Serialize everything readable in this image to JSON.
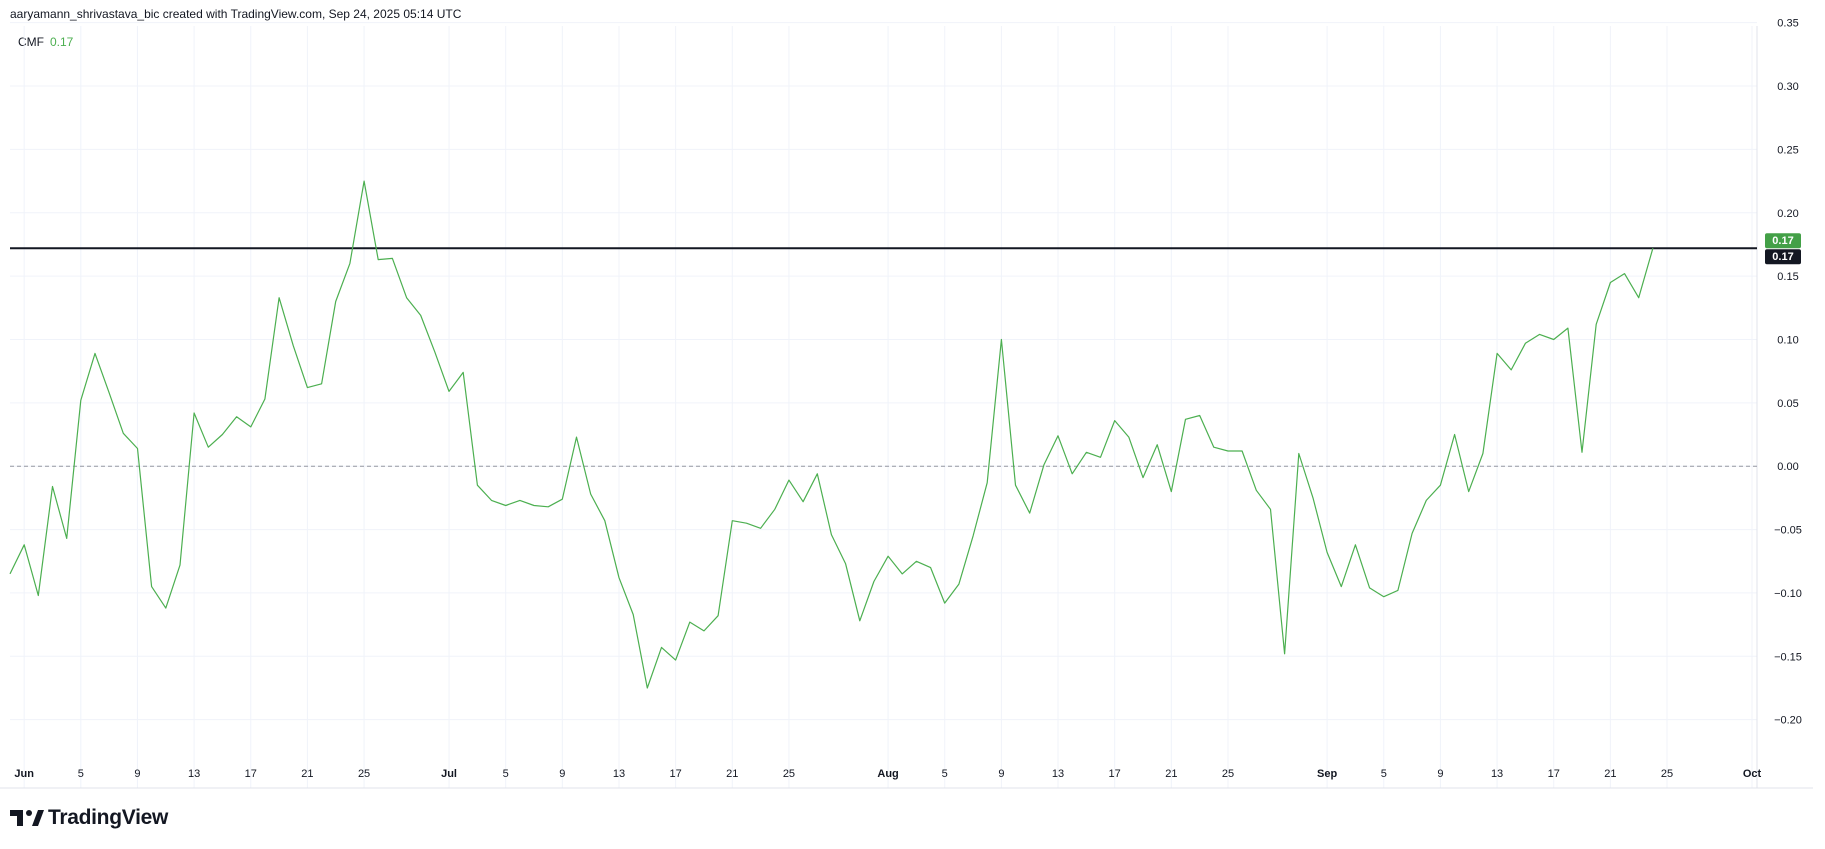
{
  "header": {
    "attribution": "aaryamann_shrivastava_bic created with TradingView.com, Sep 24, 2025 05:14 UTC"
  },
  "legend": {
    "name": "CMF",
    "value": "0.17"
  },
  "brand": {
    "name": "TradingView",
    "icon": "tradingview-logo-icon"
  },
  "colors": {
    "series": "#4caf50",
    "last_value_badge": "#43a047",
    "crosshair_badge": "#131722",
    "grid": "#f0f3fa",
    "zero_line": "#9598a1"
  },
  "chart_data": {
    "type": "line",
    "title": "",
    "xlabel": "",
    "ylabel": "",
    "ylim": [
      -0.22,
      0.36
    ],
    "yticks": [
      "0.35",
      "0.30",
      "0.25",
      "0.20",
      "0.15",
      "0.10",
      "0.05",
      "0.00",
      "−0.05",
      "−0.10",
      "−0.15",
      "−0.20"
    ],
    "xticks": [
      "Jun",
      "5",
      "9",
      "13",
      "17",
      "21",
      "25",
      "Jul",
      "5",
      "9",
      "13",
      "17",
      "21",
      "25",
      "Aug",
      "5",
      "9",
      "13",
      "17",
      "21",
      "25",
      "Sep",
      "5",
      "9",
      "13",
      "17",
      "21",
      "25",
      "Oct"
    ],
    "xtick_dates": [
      "2025-06-01",
      "2025-06-05",
      "2025-06-09",
      "2025-06-13",
      "2025-06-17",
      "2025-06-21",
      "2025-06-25",
      "2025-07-01",
      "2025-07-05",
      "2025-07-09",
      "2025-07-13",
      "2025-07-17",
      "2025-07-21",
      "2025-07-25",
      "2025-08-01",
      "2025-08-05",
      "2025-08-09",
      "2025-08-13",
      "2025-08-17",
      "2025-08-21",
      "2025-08-25",
      "2025-09-01",
      "2025-09-05",
      "2025-09-09",
      "2025-09-13",
      "2025-09-17",
      "2025-09-21",
      "2025-09-25",
      "2025-10-01"
    ],
    "bold_ticks": [
      "Jun",
      "Jul",
      "Aug",
      "Sep",
      "Oct"
    ],
    "x_start": "2025-05-31",
    "x_end": "2025-10-01",
    "reference_line": {
      "value": 0.0,
      "style": "dashed"
    },
    "horizontal_line": {
      "value": 0.172,
      "label": "0.17"
    },
    "last_value_label": "0.17",
    "grid": true,
    "series": [
      {
        "name": "CMF",
        "points": [
          [
            "2025-05-31",
            -0.085
          ],
          [
            "2025-06-01",
            -0.062
          ],
          [
            "2025-06-02",
            -0.102
          ],
          [
            "2025-06-03",
            -0.016
          ],
          [
            "2025-06-04",
            -0.057
          ],
          [
            "2025-06-05",
            0.052
          ],
          [
            "2025-06-06",
            0.089
          ],
          [
            "2025-06-07",
            0.058
          ],
          [
            "2025-06-08",
            0.026
          ],
          [
            "2025-06-09",
            0.014
          ],
          [
            "2025-06-10",
            -0.095
          ],
          [
            "2025-06-11",
            -0.112
          ],
          [
            "2025-06-12",
            -0.078
          ],
          [
            "2025-06-13",
            0.042
          ],
          [
            "2025-06-14",
            0.015
          ],
          [
            "2025-06-15",
            0.025
          ],
          [
            "2025-06-16",
            0.039
          ],
          [
            "2025-06-17",
            0.031
          ],
          [
            "2025-06-18",
            0.053
          ],
          [
            "2025-06-19",
            0.133
          ],
          [
            "2025-06-20",
            0.095
          ],
          [
            "2025-06-21",
            0.062
          ],
          [
            "2025-06-22",
            0.065
          ],
          [
            "2025-06-23",
            0.13
          ],
          [
            "2025-06-24",
            0.16
          ],
          [
            "2025-06-25",
            0.225
          ],
          [
            "2025-06-26",
            0.163
          ],
          [
            "2025-06-27",
            0.164
          ],
          [
            "2025-06-28",
            0.133
          ],
          [
            "2025-06-29",
            0.119
          ],
          [
            "2025-06-30",
            0.09
          ],
          [
            "2025-07-01",
            0.059
          ],
          [
            "2025-07-02",
            0.074
          ],
          [
            "2025-07-03",
            -0.015
          ],
          [
            "2025-07-04",
            -0.027
          ],
          [
            "2025-07-05",
            -0.031
          ],
          [
            "2025-07-06",
            -0.027
          ],
          [
            "2025-07-07",
            -0.031
          ],
          [
            "2025-07-08",
            -0.032
          ],
          [
            "2025-07-09",
            -0.026
          ],
          [
            "2025-07-10",
            0.023
          ],
          [
            "2025-07-11",
            -0.022
          ],
          [
            "2025-07-12",
            -0.043
          ],
          [
            "2025-07-13",
            -0.088
          ],
          [
            "2025-07-14",
            -0.117
          ],
          [
            "2025-07-15",
            -0.175
          ],
          [
            "2025-07-16",
            -0.143
          ],
          [
            "2025-07-17",
            -0.153
          ],
          [
            "2025-07-18",
            -0.123
          ],
          [
            "2025-07-19",
            -0.13
          ],
          [
            "2025-07-20",
            -0.118
          ],
          [
            "2025-07-21",
            -0.043
          ],
          [
            "2025-07-22",
            -0.045
          ],
          [
            "2025-07-23",
            -0.049
          ],
          [
            "2025-07-24",
            -0.034
          ],
          [
            "2025-07-25",
            -0.011
          ],
          [
            "2025-07-26",
            -0.028
          ],
          [
            "2025-07-27",
            -0.006
          ],
          [
            "2025-07-28",
            -0.054
          ],
          [
            "2025-07-29",
            -0.077
          ],
          [
            "2025-07-30",
            -0.122
          ],
          [
            "2025-07-31",
            -0.091
          ],
          [
            "2025-08-01",
            -0.071
          ],
          [
            "2025-08-02",
            -0.085
          ],
          [
            "2025-08-03",
            -0.075
          ],
          [
            "2025-08-04",
            -0.08
          ],
          [
            "2025-08-05",
            -0.108
          ],
          [
            "2025-08-06",
            -0.093
          ],
          [
            "2025-08-07",
            -0.055
          ],
          [
            "2025-08-08",
            -0.013
          ],
          [
            "2025-08-09",
            0.1
          ],
          [
            "2025-08-10",
            -0.015
          ],
          [
            "2025-08-11",
            -0.037
          ],
          [
            "2025-08-12",
            0.001
          ],
          [
            "2025-08-13",
            0.024
          ],
          [
            "2025-08-14",
            -0.006
          ],
          [
            "2025-08-15",
            0.011
          ],
          [
            "2025-08-16",
            0.007
          ],
          [
            "2025-08-17",
            0.036
          ],
          [
            "2025-08-18",
            0.023
          ],
          [
            "2025-08-19",
            -0.009
          ],
          [
            "2025-08-20",
            0.017
          ],
          [
            "2025-08-21",
            -0.02
          ],
          [
            "2025-08-22",
            0.037
          ],
          [
            "2025-08-23",
            0.04
          ],
          [
            "2025-08-24",
            0.015
          ],
          [
            "2025-08-25",
            0.012
          ],
          [
            "2025-08-26",
            0.012
          ],
          [
            "2025-08-27",
            -0.019
          ],
          [
            "2025-08-28",
            -0.034
          ],
          [
            "2025-08-29",
            -0.148
          ],
          [
            "2025-08-30",
            0.01
          ],
          [
            "2025-08-31",
            -0.025
          ],
          [
            "2025-09-01",
            -0.068
          ],
          [
            "2025-09-02",
            -0.095
          ],
          [
            "2025-09-03",
            -0.062
          ],
          [
            "2025-09-04",
            -0.096
          ],
          [
            "2025-09-05",
            -0.103
          ],
          [
            "2025-09-06",
            -0.098
          ],
          [
            "2025-09-07",
            -0.053
          ],
          [
            "2025-09-08",
            -0.027
          ],
          [
            "2025-09-09",
            -0.015
          ],
          [
            "2025-09-10",
            0.025
          ],
          [
            "2025-09-11",
            -0.02
          ],
          [
            "2025-09-12",
            0.01
          ],
          [
            "2025-09-13",
            0.089
          ],
          [
            "2025-09-14",
            0.076
          ],
          [
            "2025-09-15",
            0.097
          ],
          [
            "2025-09-16",
            0.104
          ],
          [
            "2025-09-17",
            0.1
          ],
          [
            "2025-09-18",
            0.109
          ],
          [
            "2025-09-19",
            0.011
          ],
          [
            "2025-09-20",
            0.112
          ],
          [
            "2025-09-21",
            0.145
          ],
          [
            "2025-09-22",
            0.152
          ],
          [
            "2025-09-23",
            0.133
          ],
          [
            "2025-09-24",
            0.172
          ]
        ]
      }
    ]
  }
}
